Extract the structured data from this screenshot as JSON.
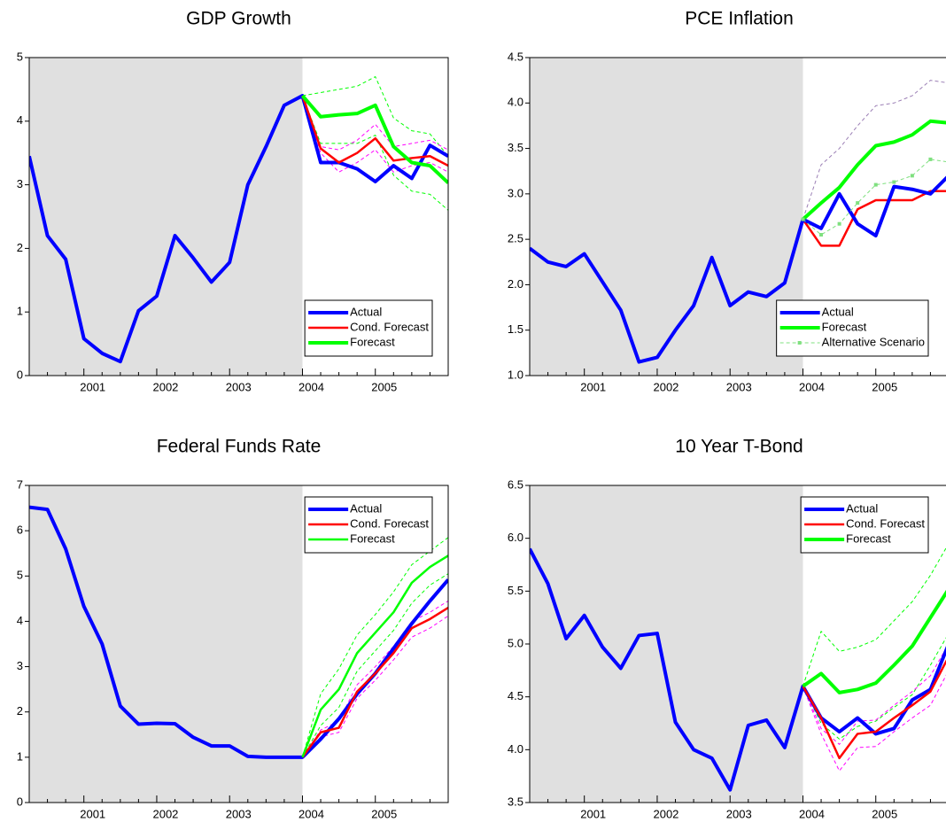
{
  "chart_data": [
    {
      "type": "line",
      "title": "GDP Growth",
      "categories": [
        null,
        null,
        null,
        "2001",
        null,
        null,
        null,
        "2002",
        null,
        null,
        null,
        "2003",
        null,
        null,
        null,
        "2004",
        null,
        null,
        null,
        "2005",
        null,
        null,
        null,
        null
      ],
      "ylim": [
        0,
        5
      ],
      "yticks": [
        0,
        1,
        2,
        3,
        4,
        5
      ],
      "legend": "lower right",
      "series": [
        {
          "color": "#00ff00",
          "weight": "thin",
          "style": "dashed",
          "values": [
            null,
            null,
            null,
            null,
            null,
            null,
            null,
            null,
            null,
            null,
            null,
            null,
            null,
            null,
            null,
            4.4,
            4.45,
            4.5,
            4.55,
            4.7,
            4.05,
            3.85,
            3.8,
            3.45
          ]
        },
        {
          "color": "#00ff00",
          "weight": "thin",
          "style": "dashed",
          "values": [
            null,
            null,
            null,
            null,
            null,
            null,
            null,
            null,
            null,
            null,
            null,
            null,
            null,
            null,
            null,
            4.4,
            3.65,
            3.65,
            3.65,
            3.78,
            3.15,
            2.9,
            2.85,
            2.6
          ]
        },
        {
          "color": "#ff00ff",
          "weight": "thin",
          "style": "dashed",
          "values": [
            null,
            null,
            null,
            null,
            null,
            null,
            null,
            null,
            null,
            null,
            null,
            null,
            null,
            null,
            null,
            4.4,
            3.6,
            3.55,
            3.7,
            3.95,
            3.6,
            3.65,
            3.7,
            3.55
          ]
        },
        {
          "color": "#ff00ff",
          "weight": "thin",
          "style": "dashed",
          "values": [
            null,
            null,
            null,
            null,
            null,
            null,
            null,
            null,
            null,
            null,
            null,
            null,
            null,
            null,
            null,
            4.4,
            3.5,
            3.2,
            3.35,
            3.55,
            3.2,
            3.3,
            3.35,
            3.2
          ]
        },
        {
          "name": "Actual",
          "color": "#0000ff",
          "weight": "thick",
          "style": "solid",
          "values": [
            3.45,
            2.2,
            1.83,
            0.58,
            0.35,
            0.22,
            1.02,
            1.25,
            2.2,
            1.85,
            1.47,
            1.78,
            3.0,
            3.6,
            4.25,
            4.4,
            3.35,
            3.35,
            3.25,
            3.05,
            3.3,
            3.1,
            3.62,
            3.45
          ]
        },
        {
          "name": "Cond. Forecast",
          "color": "#ff0000",
          "weight": "medium",
          "style": "solid",
          "values": [
            null,
            null,
            null,
            null,
            null,
            null,
            null,
            null,
            null,
            null,
            null,
            null,
            null,
            null,
            null,
            4.4,
            3.57,
            3.35,
            3.5,
            3.73,
            3.38,
            3.42,
            3.45,
            3.3
          ]
        },
        {
          "name": "Forecast",
          "color": "#00ff00",
          "weight": "thick",
          "style": "solid",
          "values": [
            null,
            null,
            null,
            null,
            null,
            null,
            null,
            null,
            null,
            null,
            null,
            null,
            null,
            null,
            null,
            4.4,
            4.07,
            4.1,
            4.12,
            4.25,
            3.6,
            3.35,
            3.3,
            3.03
          ]
        }
      ]
    },
    {
      "type": "line",
      "title": "PCE Inflation",
      "categories": [
        null,
        null,
        null,
        "2001",
        null,
        null,
        null,
        "2002",
        null,
        null,
        null,
        "2003",
        null,
        null,
        null,
        "2004",
        null,
        null,
        null,
        "2005",
        null,
        null,
        null,
        null
      ],
      "ylim": [
        1,
        4.5
      ],
      "yticks": [
        {
          "value": 1,
          "label": "1.0"
        },
        1.5,
        {
          "value": 2,
          "label": "2.0"
        },
        2.5,
        {
          "value": 3,
          "label": "3.0"
        },
        3.5,
        {
          "value": 4,
          "label": "4.0"
        },
        4.5
      ],
      "legend": "lower right",
      "series": [
        {
          "color": "#9b7fb5",
          "weight": "thin",
          "style": "dashed",
          "values": [
            null,
            null,
            null,
            null,
            null,
            null,
            null,
            null,
            null,
            null,
            null,
            null,
            null,
            null,
            null,
            2.72,
            3.32,
            3.5,
            3.75,
            3.97,
            4.0,
            4.08,
            4.25,
            4.22
          ]
        },
        {
          "color": "#ff0000",
          "weight": "medium",
          "style": "solid",
          "values": [
            null,
            null,
            null,
            null,
            null,
            null,
            null,
            null,
            null,
            null,
            null,
            null,
            null,
            null,
            null,
            2.72,
            2.43,
            2.43,
            2.83,
            2.93,
            2.93,
            2.93,
            3.03,
            3.03
          ]
        },
        {
          "name": "Actual",
          "color": "#0000ff",
          "weight": "thick",
          "style": "solid",
          "values": [
            2.4,
            2.25,
            2.2,
            2.34,
            2.03,
            1.72,
            1.15,
            1.2,
            1.5,
            1.77,
            2.3,
            1.77,
            1.92,
            1.87,
            2.02,
            2.72,
            2.62,
            3.0,
            2.67,
            2.54,
            3.08,
            3.05,
            3.0,
            3.2
          ]
        },
        {
          "name": "Forecast",
          "color": "#00ff00",
          "weight": "thick",
          "style": "solid",
          "values": [
            null,
            null,
            null,
            null,
            null,
            null,
            null,
            null,
            null,
            null,
            null,
            null,
            null,
            null,
            null,
            2.72,
            2.9,
            3.07,
            3.32,
            3.53,
            3.57,
            3.65,
            3.8,
            3.78
          ]
        },
        {
          "name": "Alternative Scenario",
          "color": "#7fe07f",
          "weight": "thin",
          "style": "dashed",
          "marker": "square",
          "values": [
            null,
            null,
            null,
            null,
            null,
            null,
            null,
            null,
            null,
            null,
            null,
            null,
            null,
            null,
            null,
            2.72,
            2.55,
            2.67,
            2.9,
            3.1,
            3.13,
            3.2,
            3.38,
            3.35
          ]
        }
      ]
    },
    {
      "type": "line",
      "title": "Federal Funds Rate",
      "categories": [
        null,
        null,
        null,
        "2001",
        null,
        null,
        null,
        "2002",
        null,
        null,
        null,
        "2003",
        null,
        null,
        null,
        "2004",
        null,
        null,
        null,
        "2005",
        null,
        null,
        null,
        null
      ],
      "ylim": [
        0,
        7
      ],
      "yticks": [
        0,
        1,
        2,
        3,
        4,
        5,
        6,
        7
      ],
      "legend": "upper right",
      "series": [
        {
          "color": "#00ff00",
          "weight": "thin",
          "style": "dashed",
          "values": [
            null,
            null,
            null,
            null,
            null,
            null,
            null,
            null,
            null,
            null,
            null,
            null,
            null,
            null,
            null,
            1.0,
            2.4,
            2.95,
            3.7,
            4.15,
            4.65,
            5.25,
            5.55,
            5.85
          ]
        },
        {
          "color": "#00ff00",
          "weight": "thin",
          "style": "dashed",
          "values": [
            null,
            null,
            null,
            null,
            null,
            null,
            null,
            null,
            null,
            null,
            null,
            null,
            null,
            null,
            null,
            1.0,
            1.7,
            2.1,
            2.9,
            3.35,
            3.8,
            4.4,
            4.8,
            5.05
          ]
        },
        {
          "color": "#ff00ff",
          "weight": "thin",
          "style": "dashed",
          "values": [
            null,
            null,
            null,
            null,
            null,
            null,
            null,
            null,
            null,
            null,
            null,
            null,
            null,
            null,
            null,
            1.0,
            1.6,
            1.8,
            2.6,
            3.0,
            3.45,
            4.0,
            4.2,
            4.45
          ]
        },
        {
          "color": "#ff00ff",
          "weight": "thin",
          "style": "dashed",
          "values": [
            null,
            null,
            null,
            null,
            null,
            null,
            null,
            null,
            null,
            null,
            null,
            null,
            null,
            null,
            null,
            1.0,
            1.45,
            1.55,
            2.3,
            2.7,
            3.15,
            3.65,
            3.85,
            4.12
          ]
        },
        {
          "name": "Actual",
          "color": "#0000ff",
          "weight": "thick",
          "style": "solid",
          "values": [
            6.52,
            6.47,
            5.6,
            4.33,
            3.5,
            2.13,
            1.73,
            1.75,
            1.74,
            1.44,
            1.25,
            1.25,
            1.02,
            1.0,
            1.0,
            1.0,
            1.4,
            1.85,
            2.4,
            2.85,
            3.4,
            3.95,
            4.45,
            4.92
          ]
        },
        {
          "name": "Cond. Forecast",
          "color": "#ff0000",
          "weight": "medium",
          "style": "solid",
          "values": [
            null,
            null,
            null,
            null,
            null,
            null,
            null,
            null,
            null,
            null,
            null,
            null,
            null,
            null,
            null,
            1.0,
            1.55,
            1.65,
            2.45,
            2.85,
            3.3,
            3.85,
            4.05,
            4.3
          ]
        },
        {
          "name": "Forecast",
          "color": "#00ff00",
          "weight": "medium",
          "style": "solid",
          "values": [
            null,
            null,
            null,
            null,
            null,
            null,
            null,
            null,
            null,
            null,
            null,
            null,
            null,
            null,
            null,
            1.0,
            2.05,
            2.5,
            3.3,
            3.75,
            4.2,
            4.85,
            5.2,
            5.45
          ]
        }
      ]
    },
    {
      "type": "line",
      "title": "10 Year T-Bond",
      "categories": [
        null,
        null,
        null,
        "2001",
        null,
        null,
        null,
        "2002",
        null,
        null,
        null,
        "2003",
        null,
        null,
        null,
        "2004",
        null,
        null,
        null,
        "2005",
        null,
        null,
        null,
        null
      ],
      "ylim": [
        3.5,
        6.5
      ],
      "yticks": [
        3.5,
        {
          "value": 4,
          "label": "4.0"
        },
        4.5,
        {
          "value": 5,
          "label": "5.0"
        },
        5.5,
        {
          "value": 6,
          "label": "6.0"
        },
        6.5
      ],
      "legend": "upper right",
      "series": [
        {
          "color": "#00ff00",
          "weight": "thin",
          "style": "dashed",
          "values": [
            null,
            null,
            null,
            null,
            null,
            null,
            null,
            null,
            null,
            null,
            null,
            null,
            null,
            null,
            null,
            4.6,
            5.12,
            4.93,
            4.97,
            5.04,
            5.22,
            5.4,
            5.65,
            5.95
          ]
        },
        {
          "color": "#00ff00",
          "weight": "thin",
          "style": "dashed",
          "values": [
            null,
            null,
            null,
            null,
            null,
            null,
            null,
            null,
            null,
            null,
            null,
            null,
            null,
            null,
            null,
            4.6,
            4.25,
            4.1,
            4.22,
            4.27,
            4.4,
            4.52,
            4.8,
            5.1
          ]
        },
        {
          "color": "#ff00ff",
          "weight": "thin",
          "style": "dashed",
          "values": [
            null,
            null,
            null,
            null,
            null,
            null,
            null,
            null,
            null,
            null,
            null,
            null,
            null,
            null,
            null,
            4.6,
            4.2,
            4.05,
            4.27,
            4.28,
            4.42,
            4.55,
            4.7,
            5.0
          ]
        },
        {
          "color": "#ff00ff",
          "weight": "thin",
          "style": "dashed",
          "values": [
            null,
            null,
            null,
            null,
            null,
            null,
            null,
            null,
            null,
            null,
            null,
            null,
            null,
            null,
            null,
            4.6,
            4.15,
            3.8,
            4.02,
            4.03,
            4.17,
            4.3,
            4.42,
            4.75
          ]
        },
        {
          "name": "Actual",
          "color": "#0000ff",
          "weight": "thick",
          "style": "solid",
          "values": [
            5.9,
            5.57,
            5.05,
            5.27,
            4.97,
            4.77,
            5.08,
            5.1,
            4.26,
            4.0,
            3.92,
            3.62,
            4.23,
            4.28,
            4.02,
            4.6,
            4.3,
            4.17,
            4.3,
            4.15,
            4.2,
            4.47,
            4.57,
            5.0
          ]
        },
        {
          "name": "Cond. Forecast",
          "color": "#ff0000",
          "weight": "medium",
          "style": "solid",
          "values": [
            null,
            null,
            null,
            null,
            null,
            null,
            null,
            null,
            null,
            null,
            null,
            null,
            null,
            null,
            null,
            4.6,
            4.3,
            3.92,
            4.15,
            4.17,
            4.3,
            4.42,
            4.55,
            4.88
          ]
        },
        {
          "name": "Forecast",
          "color": "#00ff00",
          "weight": "thick",
          "style": "solid",
          "values": [
            null,
            null,
            null,
            null,
            null,
            null,
            null,
            null,
            null,
            null,
            null,
            null,
            null,
            null,
            null,
            4.6,
            4.72,
            4.54,
            4.57,
            4.63,
            4.8,
            4.98,
            5.25,
            5.52
          ]
        }
      ]
    }
  ]
}
